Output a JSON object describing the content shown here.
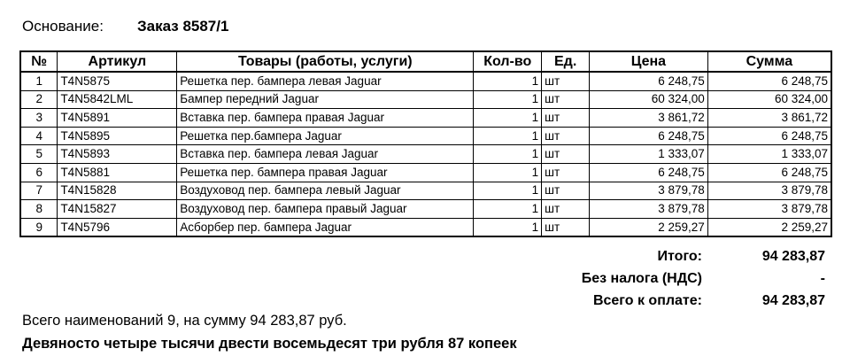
{
  "basis": {
    "label": "Основание:",
    "value": "Заказ 8587/1"
  },
  "table": {
    "headers": [
      "№",
      "Артикул",
      "Товары (работы, услуги)",
      "Кол-во",
      "Ед.",
      "Цена",
      "Сумма"
    ],
    "rows": [
      [
        1,
        "T4N5875",
        "Решетка пер. бампера левая Jaguar",
        1,
        "шт",
        "6 248,75",
        "6 248,75"
      ],
      [
        2,
        "T4N5842LML",
        "Бампер передний Jaguar",
        1,
        "шт",
        "60 324,00",
        "60 324,00"
      ],
      [
        3,
        "T4N5891",
        "Вставка пер. бампера правая Jaguar",
        1,
        "шт",
        "3 861,72",
        "3 861,72"
      ],
      [
        4,
        "T4N5895",
        "Решетка пер.бампера Jaguar",
        1,
        "шт",
        "6 248,75",
        "6 248,75"
      ],
      [
        5,
        "T4N5893",
        "Вставка пер. бампера левая Jaguar",
        1,
        "шт",
        "1 333,07",
        "1 333,07"
      ],
      [
        6,
        "T4N5881",
        "Решетка пер. бампера правая Jaguar",
        1,
        "шт",
        "6 248,75",
        "6 248,75"
      ],
      [
        7,
        "T4N15828",
        "Воздуховод пер. бампера левый Jaguar",
        1,
        "шт",
        "3 879,78",
        "3 879,78"
      ],
      [
        8,
        "T4N15827",
        "Воздуховод пер. бампера правый Jaguar",
        1,
        "шт",
        "3 879,78",
        "3 879,78"
      ],
      [
        9,
        "T4N5796",
        "Асборбер пер. бампера Jaguar",
        1,
        "шт",
        "2 259,27",
        "2 259,27"
      ]
    ]
  },
  "totals": [
    {
      "label": "Итого:",
      "value": "94 283,87"
    },
    {
      "label": "Без налога (НДС)",
      "value": "-"
    },
    {
      "label": "Всего к оплате:",
      "value": "94 283,87"
    }
  ],
  "summary": {
    "count_line": "Всего наименований 9, на сумму 94 283,87 руб.",
    "words_line": "Девяносто четыре тысячи двести восемьдесят три рубля 87 копеек"
  }
}
